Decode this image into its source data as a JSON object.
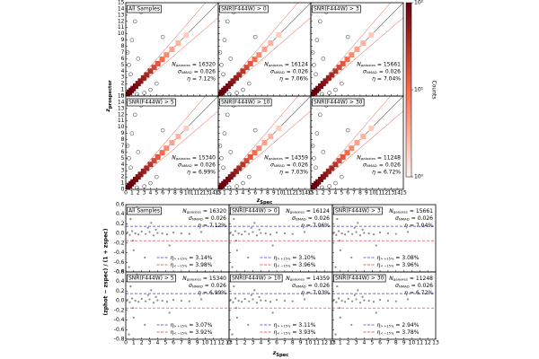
{
  "chart_data": [
    {
      "type": "hexbin",
      "xlabel": {
        "symbol": "z",
        "sub": "Spec"
      },
      "ylabel": {
        "symbol": "z",
        "sub": "prospector"
      },
      "colorbar_label": "Counts",
      "xlim": [
        0,
        15
      ],
      "ylim": [
        0,
        15
      ],
      "xticks": [
        0,
        1,
        2,
        3,
        4,
        5,
        6,
        7,
        8,
        9,
        10,
        11,
        12,
        13,
        14,
        15
      ],
      "yticks": [
        0,
        1,
        2,
        3,
        4,
        5,
        6,
        7,
        8,
        9,
        10,
        11,
        12,
        13,
        14,
        15
      ],
      "clim": [
        1,
        100
      ],
      "log_color": true,
      "cticks": [
        {
          "value": 1,
          "label": "10⁰"
        },
        {
          "value": 10,
          "label": "10¹"
        },
        {
          "value": 100,
          "label": "10²"
        }
      ],
      "outlier_threshold": 0.15,
      "equals": "=",
      "stat_labels": [
        {
          "symbol": "N",
          "sub": "galaxies"
        },
        {
          "symbol": "σ",
          "sub": "NMAD"
        },
        {
          "symbol": "η",
          "sub": ""
        }
      ],
      "panels": [
        {
          "title": "All Samples",
          "n": 16320,
          "sigma": 0.026,
          "eta": 7.12,
          "eta_label": "7.12%"
        },
        {
          "title": "SNR(F444W) > 0",
          "n": 16124,
          "sigma": 0.026,
          "eta": 7.06,
          "eta_label": "7.06%"
        },
        {
          "title": "SNR(F444W) > 3",
          "n": 15661,
          "sigma": 0.026,
          "eta": 7.04,
          "eta_label": "7.04%"
        },
        {
          "title": "SNR(F444W) > 5",
          "n": 15340,
          "sigma": 0.026,
          "eta": 6.99,
          "eta_label": "6.99%"
        },
        {
          "title": "SNR(F444W) > 10",
          "n": 14359,
          "sigma": 0.026,
          "eta": 7.03,
          "eta_label": "7.03%"
        },
        {
          "title": "SNR(F444W) > 30",
          "n": 11248,
          "sigma": 0.026,
          "eta": 6.72,
          "eta_label": "6.72%"
        }
      ],
      "points": {
        "x": [
          0.3,
          0.6,
          0.9,
          1.2,
          1.6,
          2.0,
          2.4,
          2.9,
          3.4,
          4.0,
          4.6,
          5.2,
          5.9,
          6.6,
          7.5,
          8.5,
          9.8,
          0.5,
          1.0,
          2.0,
          3.0,
          4.0,
          0.8,
          1.5,
          2.5,
          5.0,
          0.3,
          6.0,
          1.8
        ],
        "y": [
          0.3,
          0.6,
          0.9,
          1.2,
          1.6,
          2.0,
          2.4,
          2.9,
          3.4,
          4.0,
          4.6,
          5.2,
          5.9,
          6.6,
          7.5,
          8.5,
          9.8,
          5.0,
          9.0,
          6.0,
          0.5,
          1.0,
          3.5,
          12.0,
          13.5,
          2.0,
          7.0,
          9.5,
          0.3
        ],
        "counts": [
          100,
          100,
          100,
          90,
          80,
          70,
          60,
          50,
          40,
          30,
          20,
          15,
          10,
          6,
          4,
          3,
          2,
          1,
          1,
          1,
          1,
          1,
          1,
          1,
          1,
          1,
          1,
          1,
          1
        ]
      }
    },
    {
      "type": "scatter",
      "xlabel": {
        "symbol": "z",
        "sub": "Spec"
      },
      "ylabel": "(zphot − zspec) / (1 + zspec)",
      "xlim": [
        0,
        13
      ],
      "ylim": [
        -0.8,
        0.6
      ],
      "xticks": [
        0,
        1,
        2,
        3,
        4,
        5,
        6,
        7,
        8,
        9,
        10,
        11,
        12,
        13
      ],
      "yticks": [
        -0.8,
        -0.6,
        -0.4,
        -0.2,
        {
          "value": 0,
          "label": "0.0"
        },
        0.2,
        0.4,
        0.6
      ],
      "outlier_threshold": 0.15,
      "hi_color": "#3a3ad6",
      "lo_color": "#e03030",
      "point_color": "#8c8c8c",
      "equals": "=",
      "stat_labels": [
        {
          "symbol": "N",
          "sub": "galaxies"
        },
        {
          "symbol": "σ",
          "sub": "NMAD"
        },
        {
          "symbol": "η",
          "sub": ""
        }
      ],
      "legend_labels": [
        {
          "symbol": "η",
          "sub": "> +15%"
        },
        {
          "symbol": "η",
          "sub": "< −15%"
        }
      ],
      "panels": [
        {
          "title": "All Samples",
          "n": 16320,
          "sigma": 0.026,
          "eta": 7.12,
          "eta_label": "7.12%",
          "eta_hi": 3.14,
          "eta_hi_label": "3.14%",
          "eta_lo": 3.98,
          "eta_lo_label": "3.98%"
        },
        {
          "title": "SNR(F444W) > 0",
          "n": 16124,
          "sigma": 0.026,
          "eta": 7.06,
          "eta_label": "7.06%",
          "eta_hi": 3.1,
          "eta_hi_label": "3.10%",
          "eta_lo": 3.96,
          "eta_lo_label": "3.96%"
        },
        {
          "title": "SNR(F444W) > 3",
          "n": 15661,
          "sigma": 0.026,
          "eta": 7.04,
          "eta_label": "7.04%",
          "eta_hi": 3.08,
          "eta_hi_label": "3.08%",
          "eta_lo": 3.96,
          "eta_lo_label": "3.96%"
        },
        {
          "title": "SNR(F444W) > 5",
          "n": 15340,
          "sigma": 0.026,
          "eta": 6.99,
          "eta_label": "6.99%",
          "eta_hi": 3.07,
          "eta_hi_label": "3.07%",
          "eta_lo": 3.92,
          "eta_lo_label": "3.92%"
        },
        {
          "title": "SNR(F444W) > 10",
          "n": 14359,
          "sigma": 0.026,
          "eta": 7.03,
          "eta_label": "7.03%",
          "eta_hi": 3.11,
          "eta_hi_label": "3.11%",
          "eta_lo": 3.93,
          "eta_lo_label": "3.93%"
        },
        {
          "title": "SNR(F444W) > 30",
          "n": 11248,
          "sigma": 0.026,
          "eta": 6.72,
          "eta_label": "6.72%",
          "eta_hi": 2.94,
          "eta_hi_label": "2.94%",
          "eta_lo": 3.78,
          "eta_lo_label": "3.78%"
        }
      ],
      "points": {
        "x": [
          0.2,
          0.5,
          0.8,
          1.2,
          1.6,
          2.0,
          2.5,
          3.0,
          3.5,
          4.0,
          4.6,
          5.2,
          6.0,
          7.0,
          8.0,
          9.5,
          0.6,
          1.0,
          1.8,
          2.4,
          3.2,
          0.4,
          1.4,
          5.5,
          2.8,
          0.9,
          3.8
        ],
        "y": [
          0.02,
          -0.03,
          0.05,
          0.0,
          -0.02,
          0.04,
          -0.01,
          0.03,
          -0.04,
          0.01,
          0.0,
          -0.02,
          0.02,
          0.0,
          -0.01,
          0.03,
          0.3,
          -0.35,
          0.45,
          -0.5,
          0.22,
          -0.7,
          0.55,
          -0.25,
          0.12,
          -0.15,
          0.08
        ]
      }
    }
  ]
}
